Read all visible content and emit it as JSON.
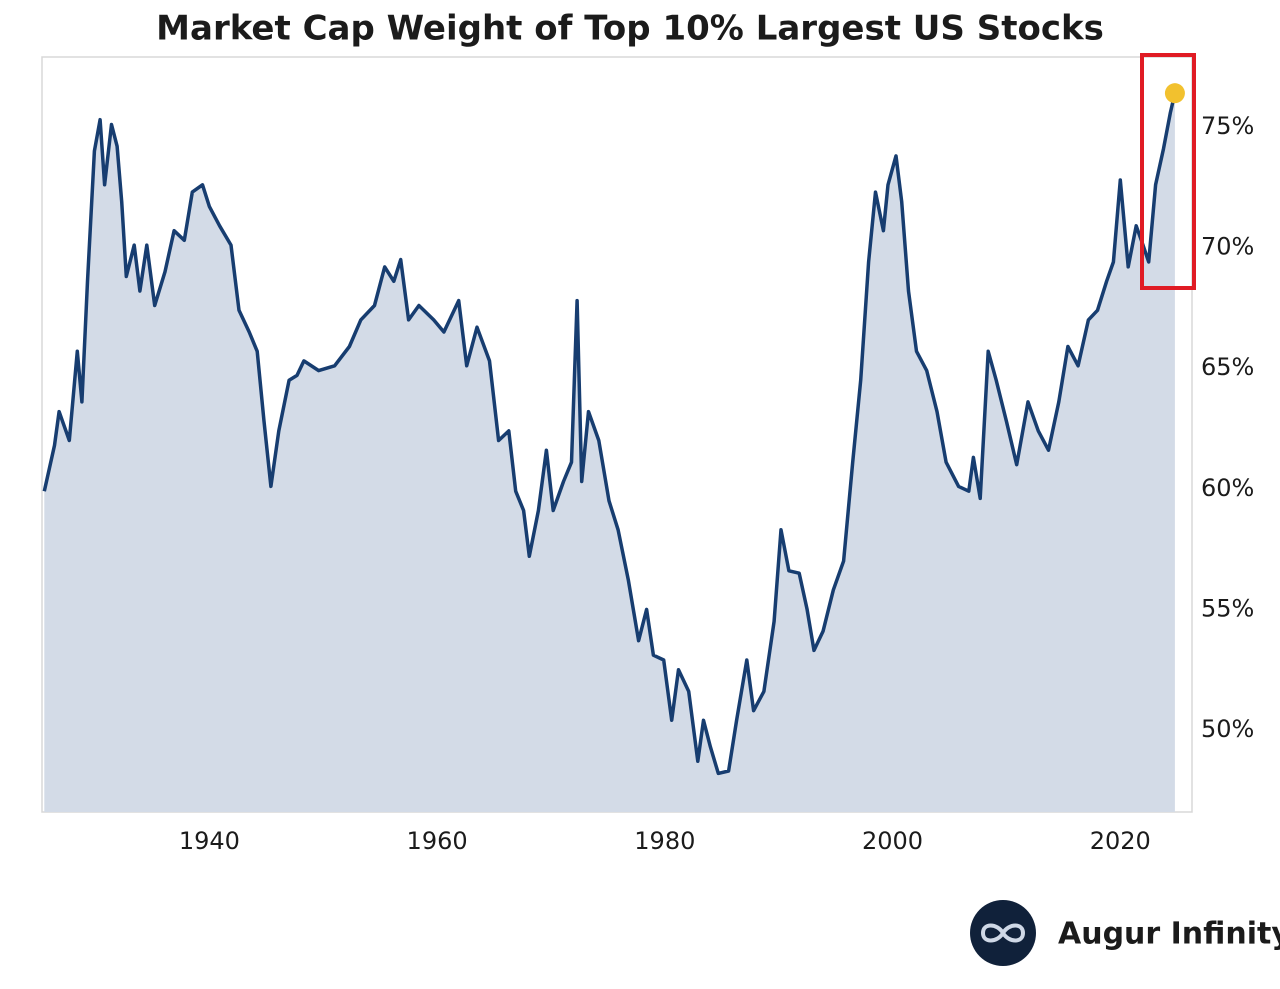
{
  "chart_data": {
    "type": "area",
    "title": "Market Cap Weight of Top 10% Largest US Stocks",
    "x": [
      1925.5,
      1926.4,
      1926.8,
      1927.7,
      1928.4,
      1928.8,
      1929.3,
      1929.9,
      1930.4,
      1930.8,
      1931.4,
      1931.9,
      1932.3,
      1932.7,
      1933.4,
      1933.9,
      1934.5,
      1935.2,
      1936.1,
      1936.9,
      1937.8,
      1938.5,
      1939.4,
      1940,
      1940.9,
      1941.9,
      1942.6,
      1943.5,
      1944.2,
      1944.8,
      1945.4,
      1946.1,
      1947,
      1947.7,
      1948.3,
      1949.6,
      1951,
      1952.3,
      1953.3,
      1954.5,
      1955.4,
      1956.2,
      1956.8,
      1957.5,
      1958.4,
      1959.7,
      1960.6,
      1961.9,
      1962.6,
      1963.5,
      1964.6,
      1965.4,
      1966.3,
      1966.9,
      1967.6,
      1968.1,
      1968.9,
      1969.6,
      1970.2,
      1971.1,
      1971.8,
      1972.3,
      1972.7,
      1973.3,
      1974.2,
      1975.1,
      1975.9,
      1976.8,
      1977.7,
      1978.4,
      1979,
      1979.9,
      1980.6,
      1981.2,
      1982.1,
      1982.9,
      1983.4,
      1984,
      1984.7,
      1985.6,
      1986.3,
      1987.2,
      1987.8,
      1988.7,
      1989.6,
      1990.2,
      1990.9,
      1991.8,
      1992.5,
      1993.1,
      1993.9,
      1994.8,
      1995.7,
      1996.5,
      1997.2,
      1997.9,
      1998.5,
      1999.2,
      1999.6,
      2000.3,
      2000.8,
      2001.4,
      2002.1,
      2003,
      2003.9,
      2004.7,
      2005.8,
      2006.7,
      2007.1,
      2007.7,
      2008.4,
      2009.1,
      2010,
      2010.9,
      2011.9,
      2012.8,
      2013.7,
      2014.6,
      2015.4,
      2016.3,
      2017.2,
      2018,
      2018.8,
      2019.4,
      2020,
      2020.7,
      2021.4,
      2022,
      2022.5,
      2023.1,
      2023.8,
      2024.4,
      2024.8
    ],
    "values": [
      59.9,
      61.8,
      63.2,
      62.0,
      65.7,
      63.6,
      68.6,
      74.0,
      75.3,
      72.6,
      75.1,
      74.2,
      71.9,
      68.8,
      70.1,
      68.2,
      70.1,
      67.6,
      69.0,
      70.7,
      70.3,
      72.3,
      72.6,
      71.7,
      70.9,
      70.1,
      67.4,
      66.5,
      65.7,
      62.8,
      60.1,
      62.4,
      64.5,
      64.7,
      65.3,
      64.9,
      65.1,
      65.9,
      67.0,
      67.6,
      69.2,
      68.6,
      69.5,
      67.0,
      67.6,
      67.0,
      66.5,
      67.8,
      65.1,
      66.7,
      65.3,
      62.0,
      62.4,
      59.9,
      59.1,
      57.2,
      59.1,
      61.6,
      59.1,
      60.3,
      61.1,
      67.8,
      60.3,
      63.2,
      62.0,
      59.5,
      58.3,
      56.2,
      53.7,
      55.0,
      53.1,
      52.9,
      50.4,
      52.5,
      51.6,
      48.7,
      50.4,
      49.3,
      48.2,
      48.3,
      50.4,
      52.9,
      50.8,
      51.6,
      54.5,
      58.3,
      56.6,
      56.5,
      55.0,
      53.3,
      54.1,
      55.8,
      57.0,
      61.1,
      64.5,
      69.4,
      72.3,
      70.7,
      72.6,
      73.8,
      71.9,
      68.2,
      65.7,
      64.9,
      63.2,
      61.1,
      60.1,
      59.9,
      61.3,
      59.6,
      65.7,
      64.5,
      62.8,
      61.0,
      63.6,
      62.4,
      61.6,
      63.6,
      65.9,
      65.1,
      67.0,
      67.4,
      68.6,
      69.4,
      72.8,
      69.2,
      70.9,
      70.1,
      69.4,
      72.6,
      74.1,
      75.6,
      76.4
    ],
    "color": "#173d70",
    "fill_color": "#d3dbe7",
    "highlight_color": "#f2c12e",
    "xlim": [
      1925.3,
      2026.3
    ],
    "xticks": [
      1940,
      1960,
      1980,
      2000,
      2020
    ],
    "ylim": [
      46.6,
      77.9
    ],
    "yticks": [
      {
        "value": 50,
        "label": "50%"
      },
      {
        "value": 55,
        "label": "55%"
      },
      {
        "value": 60,
        "label": "60%"
      },
      {
        "value": 65,
        "label": "65%"
      },
      {
        "value": 70,
        "label": "70%"
      },
      {
        "value": 75,
        "label": "75%"
      }
    ],
    "grid": false
  },
  "logo": {
    "text": "Augur Infinity"
  }
}
